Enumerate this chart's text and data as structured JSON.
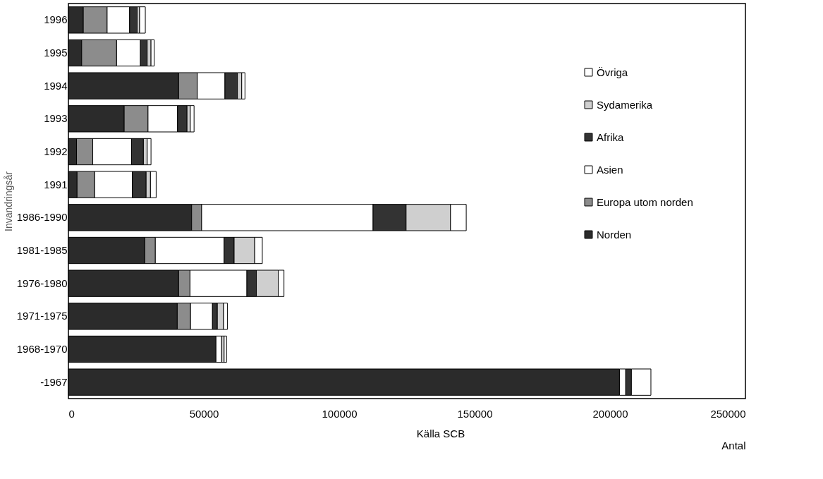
{
  "chart_data": {
    "type": "bar",
    "orientation": "horizontal",
    "stacked": true,
    "xlabel": "Antal",
    "ylabel": "Invandringsår",
    "categories": [
      "1996",
      "1995",
      "1994",
      "1993",
      "1992",
      "1991",
      "1986-1990",
      "1981-1985",
      "1976-1980",
      "1971-1975",
      "1968-1970",
      "-1967"
    ],
    "series": [
      {
        "name": "Norden",
        "color": "#2b2b2b",
        "values": [
          5500,
          4900,
          40700,
          20600,
          3000,
          3200,
          45500,
          28200,
          40700,
          40200,
          54500,
          203500
        ]
      },
      {
        "name": "Europa utom norden",
        "color": "#8c8c8c",
        "values": [
          8800,
          12900,
          6900,
          8800,
          6000,
          6500,
          3700,
          3900,
          4200,
          4900,
          null,
          null
        ]
      },
      {
        "name": "Asien",
        "color": "#ffffff",
        "values": [
          8300,
          8800,
          10200,
          10900,
          14300,
          13900,
          63300,
          25400,
          21000,
          8100,
          2100,
          2300
        ]
      },
      {
        "name": "Afrika",
        "color": "#333333",
        "values": [
          2800,
          2500,
          4600,
          3500,
          4400,
          5100,
          12200,
          3700,
          3500,
          1800,
          null,
          2100
        ]
      },
      {
        "name": "Sydamerika",
        "color": "#cfcfcf",
        "values": [
          900,
          1400,
          1600,
          1200,
          1400,
          1600,
          16400,
          7600,
          8100,
          2300,
          900,
          null
        ]
      },
      {
        "name": "Övriga",
        "color": "#ffffff",
        "values": [
          2100,
          1200,
          1200,
          1400,
          1400,
          2100,
          5800,
          2800,
          2100,
          1400,
          900,
          7200
        ]
      }
    ],
    "xlim": [
      0,
      250000
    ],
    "xticks": [
      0,
      50000,
      100000,
      150000,
      200000,
      250000
    ],
    "grid": false,
    "legend": "right",
    "annotations": [
      "Källa SCB"
    ]
  }
}
